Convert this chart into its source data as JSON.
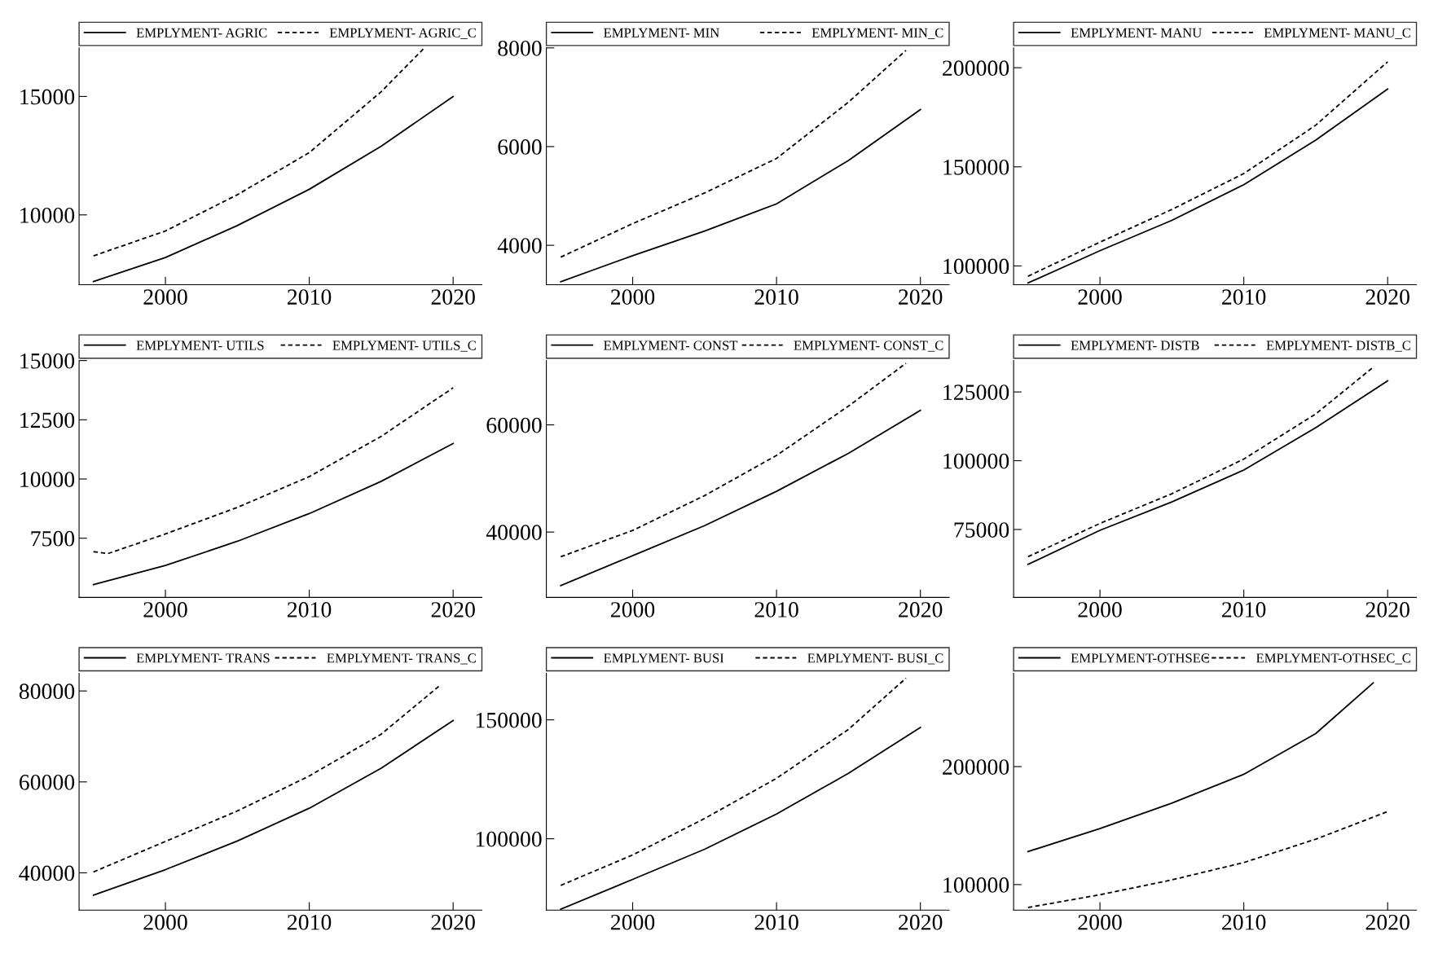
{
  "chart_data": [
    {
      "type": "line",
      "xlim": [
        1994,
        2022
      ],
      "xticks": [
        2000,
        2010,
        2020
      ],
      "ylim": [
        7050,
        17050
      ],
      "yticks": [
        10000,
        15000
      ],
      "grid": false,
      "legend": "top",
      "series": [
        {
          "name": "EMPLYMENT- AGRIC",
          "color": "#000000",
          "line_style": "solid",
          "x": [
            1995,
            2000,
            2005,
            2010,
            2015,
            2020
          ],
          "values": [
            7190,
            8200,
            9550,
            11080,
            12900,
            15000
          ]
        },
        {
          "name": "EMPLYMENT- AGRIC_C",
          "color": "#000000",
          "line_style": "dashed",
          "x": [
            1995,
            2000,
            2005,
            2010,
            2015,
            2018
          ],
          "values": [
            8270,
            9320,
            10850,
            12630,
            15200,
            17050
          ]
        }
      ]
    },
    {
      "type": "line",
      "xlim": [
        1994,
        2022
      ],
      "xticks": [
        2000,
        2010,
        2020
      ],
      "ylim": [
        3200,
        8000
      ],
      "yticks": [
        4000,
        6000,
        8000
      ],
      "grid": false,
      "legend": "top",
      "series": [
        {
          "name": "EMPLYMENT- MIN",
          "color": "#000000",
          "line_style": "solid",
          "x": [
            1995,
            2000,
            2005,
            2010,
            2015,
            2020
          ],
          "values": [
            3260,
            3790,
            4290,
            4840,
            5720,
            6750
          ]
        },
        {
          "name": "EMPLYMENT- MIN_C",
          "color": "#000000",
          "line_style": "dashed",
          "x": [
            1995,
            2000,
            2005,
            2010,
            2015,
            2019
          ],
          "values": [
            3760,
            4440,
            5060,
            5760,
            6900,
            7950
          ]
        }
      ]
    },
    {
      "type": "line",
      "xlim": [
        1994,
        2022
      ],
      "xticks": [
        2000,
        2010,
        2020
      ],
      "ylim": [
        90500,
        210000
      ],
      "yticks": [
        100000,
        150000,
        200000
      ],
      "grid": false,
      "legend": "top",
      "series": [
        {
          "name": "EMPLYMENT- MANU",
          "color": "#000000",
          "line_style": "solid",
          "x": [
            1995,
            2000,
            2005,
            2010,
            2015,
            2020
          ],
          "values": [
            91400,
            107700,
            123000,
            141000,
            163500,
            189300
          ]
        },
        {
          "name": "EMPLYMENT- MANU_C",
          "color": "#000000",
          "line_style": "dashed",
          "x": [
            1995,
            2000,
            2005,
            2010,
            2015,
            2020
          ],
          "values": [
            94800,
            112000,
            128500,
            146600,
            171000,
            203000
          ]
        }
      ]
    },
    {
      "type": "line",
      "xlim": [
        1994,
        2022
      ],
      "xticks": [
        2000,
        2010,
        2020
      ],
      "ylim": [
        5000,
        15000
      ],
      "yticks": [
        7500,
        10000,
        12500,
        15000
      ],
      "grid": false,
      "legend": "top",
      "series": [
        {
          "name": "EMPLYMENT- UTILS",
          "color": "#000000",
          "line_style": "solid",
          "x": [
            1995,
            2000,
            2005,
            2010,
            2015,
            2020
          ],
          "values": [
            5540,
            6350,
            7370,
            8540,
            9900,
            11500
          ]
        },
        {
          "name": "EMPLYMENT- UTILS_C",
          "color": "#000000",
          "line_style": "dashed",
          "x": [
            1995,
            1996,
            2000,
            2005,
            2010,
            2015,
            2020
          ],
          "values": [
            6930,
            6850,
            7680,
            8800,
            10100,
            11800,
            13850
          ]
        }
      ]
    },
    {
      "type": "line",
      "xlim": [
        1994,
        2022
      ],
      "xticks": [
        2000,
        2010,
        2020
      ],
      "ylim": [
        27800,
        72000
      ],
      "yticks": [
        40000,
        60000
      ],
      "grid": false,
      "legend": "top",
      "series": [
        {
          "name": "EMPLYMENT- CONST",
          "color": "#000000",
          "line_style": "solid",
          "x": [
            1995,
            2000,
            2005,
            2010,
            2015,
            2020
          ],
          "values": [
            30000,
            35600,
            41200,
            47600,
            54700,
            62700
          ]
        },
        {
          "name": "EMPLYMENT- CONST_C",
          "color": "#000000",
          "line_style": "dashed",
          "x": [
            1995,
            2000,
            2005,
            2010,
            2015,
            2019
          ],
          "values": [
            35400,
            40300,
            46800,
            54300,
            63500,
            71500
          ]
        }
      ]
    },
    {
      "type": "line",
      "xlim": [
        1994,
        2022
      ],
      "xticks": [
        2000,
        2010,
        2020
      ],
      "ylim": [
        50300,
        136400
      ],
      "yticks": [
        75000,
        100000,
        125000
      ],
      "grid": false,
      "legend": "top",
      "series": [
        {
          "name": "EMPLYMENT- DISTB",
          "color": "#000000",
          "line_style": "solid",
          "x": [
            1995,
            2000,
            2005,
            2010,
            2015,
            2020
          ],
          "values": [
            62300,
            74700,
            85000,
            96600,
            112000,
            129000
          ]
        },
        {
          "name": "EMPLYMENT- DISTB_C",
          "color": "#000000",
          "line_style": "dashed",
          "x": [
            1995,
            2000,
            2005,
            2010,
            2015,
            2019
          ],
          "values": [
            65100,
            77200,
            88000,
            100600,
            117000,
            134000
          ]
        }
      ]
    },
    {
      "type": "line",
      "xlim": [
        1994,
        2022
      ],
      "xticks": [
        2000,
        2010,
        2020
      ],
      "ylim": [
        31800,
        83900
      ],
      "yticks": [
        40000,
        60000,
        80000
      ],
      "grid": false,
      "legend": "top",
      "series": [
        {
          "name": "EMPLYMENT- TRANS",
          "color": "#000000",
          "line_style": "solid",
          "x": [
            1995,
            2000,
            2005,
            2010,
            2015,
            2020
          ],
          "values": [
            35100,
            40700,
            47000,
            54200,
            63000,
            73500
          ]
        },
        {
          "name": "EMPLYMENT- TRANS_C",
          "color": "#000000",
          "line_style": "dashed",
          "x": [
            1995,
            2000,
            2005,
            2010,
            2015,
            2019
          ],
          "values": [
            40200,
            46900,
            53600,
            61300,
            70500,
            81000
          ]
        }
      ]
    },
    {
      "type": "line",
      "xlim": [
        1994,
        2022
      ],
      "xticks": [
        2000,
        2010,
        2020
      ],
      "ylim": [
        70000,
        169600
      ],
      "yticks": [
        100000,
        150000
      ],
      "grid": false,
      "legend": "top",
      "series": [
        {
          "name": "EMPLYMENT- BUSI",
          "color": "#000000",
          "line_style": "solid",
          "x": [
            1995,
            2000,
            2005,
            2010,
            2015,
            2020
          ],
          "values": [
            70400,
            82900,
            95600,
            110400,
            127500,
            146800
          ]
        },
        {
          "name": "EMPLYMENT- BUSI_C",
          "color": "#000000",
          "line_style": "dashed",
          "x": [
            1995,
            2000,
            2005,
            2010,
            2015,
            2019
          ],
          "values": [
            80400,
            93200,
            108500,
            125400,
            146000,
            167500
          ]
        }
      ]
    },
    {
      "type": "line",
      "xlim": [
        1994,
        2022
      ],
      "xticks": [
        2000,
        2010,
        2020
      ],
      "ylim": [
        78400,
        279100
      ],
      "yticks": [
        100000,
        200000
      ],
      "grid": false,
      "legend": "top",
      "series": [
        {
          "name": "EMPLYMENT-OTHSEC",
          "color": "#000000",
          "line_style": "solid",
          "x": [
            1995,
            2000,
            2005,
            2010,
            2015,
            2019
          ],
          "values": [
            128000,
            147500,
            169000,
            193500,
            228000,
            271000
          ]
        },
        {
          "name": "EMPLYMENT-OTHSEC_C",
          "color": "#000000",
          "line_style": "dashed",
          "x": [
            1995,
            2000,
            2005,
            2010,
            2015,
            2020
          ],
          "values": [
            80600,
            91400,
            104000,
            118700,
            138500,
            161900
          ]
        }
      ]
    }
  ]
}
